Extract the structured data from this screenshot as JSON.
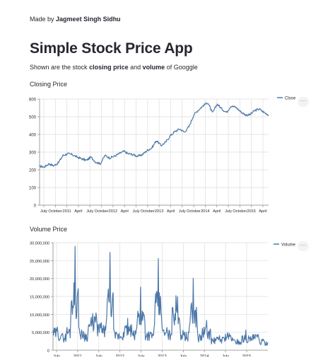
{
  "header": {
    "made_by_prefix": "Made by",
    "author": "Jagmeet Singh Sidhu",
    "title": "Simple Stock Price App",
    "desc_prefix": "Shown are the stock",
    "desc_closing": "closing price",
    "desc_and": "and",
    "desc_volume": "volume",
    "desc_suffix": "of Googgle"
  },
  "closing_section": {
    "label": "Closing Price",
    "menu": "···"
  },
  "volume_section": {
    "label": "Volume Price",
    "menu": "···"
  },
  "colors": {
    "line": "#4c78a8",
    "grid": "#dddddd",
    "text": "#262730"
  },
  "chart_data": [
    {
      "type": "line",
      "title": "",
      "legend": "Close",
      "legend_position": "top-right",
      "ylim": [
        0,
        640
      ],
      "y_ticks": [
        "0",
        "100",
        "200",
        "300",
        "400",
        "500",
        "600"
      ],
      "x_tick_labels": [
        "July",
        "October",
        "2011",
        "April",
        "July",
        "October",
        "2012",
        "April",
        "July",
        "October",
        "2013",
        "April",
        "July",
        "October",
        "2014",
        "April",
        "July",
        "October",
        "2015",
        "April"
      ],
      "series": [
        {
          "name": "Close",
          "values": [
            235,
            230,
            250,
            238,
            255,
            300,
            310,
            305,
            290,
            280,
            270,
            290,
            260,
            250,
            300,
            285,
            295,
            310,
            325,
            310,
            305,
            295,
            305,
            330,
            345,
            390,
            360,
            380,
            420,
            445,
            460,
            440,
            475,
            545,
            575,
            600,
            620,
            555,
            610,
            580,
            560,
            600,
            590,
            565,
            545,
            545,
            570,
            580,
            560,
            545
          ]
        }
      ],
      "grid": true
    },
    {
      "type": "line",
      "title": "",
      "legend": "Volume",
      "legend_position": "top-right",
      "ylim": [
        0,
        30000000
      ],
      "y_ticks": [
        "0",
        "5,000,000",
        "10,000,000",
        "15,000,000",
        "20,000,000",
        "25,000,000",
        "30,000,000"
      ],
      "x_tick_labels": [
        "July",
        "2011",
        "July",
        "2012",
        "July",
        "2013",
        "July",
        "2014",
        "July",
        "2015"
      ],
      "series": [
        {
          "name": "Volume",
          "values": [
            5500000,
            6500000,
            4200000,
            5000000,
            8000000,
            29500000,
            6000000,
            5200000,
            4800000,
            13000000,
            7200000,
            7800000,
            5500000,
            27600000,
            4500000,
            5200000,
            4800000,
            9000000,
            5000000,
            5500000,
            18000000,
            6200000,
            4800000,
            5600000,
            25800000,
            5200000,
            6400000,
            4500000,
            23600000,
            5800000,
            5100000,
            4900000,
            20500000,
            4600000,
            4400000,
            8500000,
            3600000,
            3200000,
            4100000,
            3500000,
            6400000,
            2900000,
            3100000,
            2600000,
            5700000,
            2400000,
            6100000,
            2900000,
            3000000,
            2200000
          ]
        }
      ],
      "grid": true
    }
  ]
}
